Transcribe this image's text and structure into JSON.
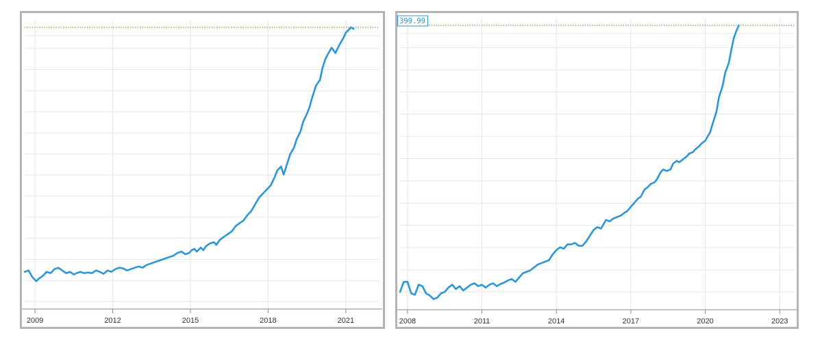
{
  "chart_data": [
    {
      "type": "line",
      "title": "",
      "xlabel": "",
      "ylabel": "",
      "x_ticks": [
        "2009",
        "2012",
        "2015",
        "2018",
        "2021"
      ],
      "xlim": [
        2008.6,
        2022.3
      ],
      "ylim": [
        -6,
        400
      ],
      "max_line": 400,
      "grid": true,
      "series_color": "#2b95dc",
      "max_line_color": "#a38b43",
      "series": [
        {
          "x": [
            2008.6,
            2008.75,
            2008.9,
            2009.05,
            2009.15,
            2009.3,
            2009.45,
            2009.6,
            2009.75,
            2009.9,
            2010.05,
            2010.2,
            2010.35,
            2010.5,
            2010.6,
            2010.75,
            2010.9,
            2011.05,
            2011.2,
            2011.35,
            2011.5,
            2011.65,
            2011.8,
            2011.95,
            2012.1,
            2012.25,
            2012.4,
            2012.55,
            2012.7,
            2012.85,
            2013.0,
            2013.15,
            2013.3,
            2013.45,
            2013.6,
            2013.75,
            2013.9,
            2014.05,
            2014.2,
            2014.35,
            2014.5,
            2014.65,
            2014.8,
            2014.95,
            2015.05,
            2015.15,
            2015.25,
            2015.4,
            2015.5,
            2015.6,
            2015.75,
            2015.9,
            2016.0,
            2016.15,
            2016.3,
            2016.45,
            2016.6,
            2016.75,
            2016.9,
            2017.05,
            2017.2,
            2017.35,
            2017.5,
            2017.65,
            2017.8,
            2017.95,
            2018.1,
            2018.25,
            2018.35,
            2018.5,
            2018.6,
            2018.75,
            2018.85,
            2019.0,
            2019.1,
            2019.25,
            2019.35,
            2019.5,
            2019.6,
            2019.7,
            2019.85,
            2020.0,
            2020.1,
            2020.2,
            2020.3,
            2020.45,
            2020.6,
            2020.75,
            2020.9,
            2021.0,
            2021.1,
            2021.2,
            2021.3
          ],
          "y": [
            38,
            40,
            30,
            24,
            28,
            32,
            38,
            36,
            42,
            44,
            40,
            36,
            38,
            34,
            36,
            38,
            36,
            37,
            36,
            40,
            38,
            35,
            40,
            38,
            42,
            44,
            43,
            40,
            42,
            44,
            46,
            44,
            48,
            50,
            52,
            54,
            56,
            58,
            60,
            62,
            66,
            68,
            64,
            66,
            70,
            72,
            68,
            74,
            70,
            76,
            80,
            82,
            78,
            86,
            90,
            94,
            98,
            106,
            110,
            114,
            122,
            128,
            138,
            148,
            154,
            160,
            166,
            178,
            188,
            194,
            182,
            200,
            212,
            222,
            234,
            246,
            260,
            272,
            282,
            296,
            314,
            322,
            340,
            352,
            360,
            370,
            362,
            374,
            384,
            392,
            396,
            400,
            398
          ]
        }
      ]
    },
    {
      "type": "line",
      "title": "",
      "xlabel": "",
      "ylabel": "",
      "x_ticks": [
        "2008",
        "2011",
        "2014",
        "2017",
        "2020",
        "2023"
      ],
      "xlim": [
        2007.7,
        2023.6
      ],
      "ylim": [
        30,
        400
      ],
      "max_line": 400,
      "max_label": "399.99",
      "grid": true,
      "series_color": "#2b95dc",
      "max_line_color": "#a38b43",
      "series": [
        {
          "x": [
            2007.7,
            2007.85,
            2008.0,
            2008.15,
            2008.3,
            2008.45,
            2008.6,
            2008.75,
            2008.9,
            2009.05,
            2009.2,
            2009.35,
            2009.5,
            2009.65,
            2009.8,
            2009.95,
            2010.1,
            2010.25,
            2010.4,
            2010.55,
            2010.7,
            2010.85,
            2011.0,
            2011.15,
            2011.3,
            2011.45,
            2011.6,
            2011.75,
            2011.9,
            2012.05,
            2012.2,
            2012.35,
            2012.5,
            2012.65,
            2012.8,
            2012.95,
            2013.1,
            2013.25,
            2013.4,
            2013.55,
            2013.7,
            2013.85,
            2014.0,
            2014.15,
            2014.3,
            2014.45,
            2014.6,
            2014.75,
            2014.9,
            2015.05,
            2015.2,
            2015.35,
            2015.5,
            2015.65,
            2015.8,
            2015.9,
            2016.0,
            2016.15,
            2016.3,
            2016.45,
            2016.6,
            2016.75,
            2016.85,
            2017.0,
            2017.15,
            2017.3,
            2017.4,
            2017.55,
            2017.7,
            2017.8,
            2017.95,
            2018.05,
            2018.2,
            2018.3,
            2018.45,
            2018.6,
            2018.7,
            2018.85,
            2018.95,
            2019.1,
            2019.25,
            2019.35,
            2019.5,
            2019.6,
            2019.75,
            2019.85,
            2020.0,
            2020.1,
            2020.2,
            2020.3,
            2020.45,
            2020.55,
            2020.7,
            2020.8,
            2020.95,
            2021.05,
            2021.15,
            2021.25,
            2021.35
          ],
          "y": [
            30,
            44,
            44,
            28,
            26,
            40,
            38,
            28,
            25,
            20,
            22,
            28,
            30,
            36,
            40,
            34,
            38,
            32,
            36,
            40,
            42,
            38,
            40,
            36,
            40,
            42,
            38,
            41,
            43,
            46,
            48,
            44,
            50,
            56,
            58,
            60,
            64,
            68,
            70,
            72,
            74,
            82,
            88,
            92,
            90,
            96,
            96,
            98,
            94,
            94,
            100,
            108,
            116,
            120,
            118,
            124,
            130,
            128,
            132,
            134,
            136,
            140,
            142,
            148,
            154,
            160,
            162,
            172,
            176,
            180,
            182,
            186,
            196,
            200,
            198,
            200,
            208,
            212,
            210,
            214,
            218,
            222,
            224,
            228,
            232,
            236,
            240,
            246,
            252,
            264,
            280,
            300,
            316,
            334,
            348,
            366,
            382,
            392,
            400
          ]
        }
      ]
    }
  ]
}
